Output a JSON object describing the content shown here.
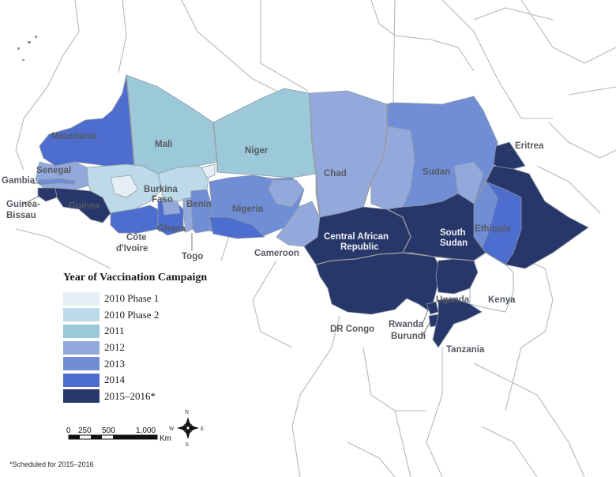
{
  "legend": {
    "title": "Year of Vaccination Campaign",
    "items": [
      {
        "label": "2010 Phase 1",
        "color": "#e3eef5"
      },
      {
        "label": "2010 Phase 2",
        "color": "#bcdae7"
      },
      {
        "label": "2011",
        "color": "#9bc9d9"
      },
      {
        "label": "2012",
        "color": "#93a9dc"
      },
      {
        "label": "2013",
        "color": "#6f8ed6"
      },
      {
        "label": "2014",
        "color": "#4d6dcf"
      },
      {
        "label": "2015–2016*",
        "color": "#27376a"
      }
    ]
  },
  "countries": [
    {
      "name": "Mauritania",
      "color": "#4d6dcf"
    },
    {
      "name": "Mali",
      "color": "#9bc9d9"
    },
    {
      "name": "Niger",
      "color": "#9bc9d9"
    },
    {
      "name": "Chad",
      "color": "#93a9dc"
    },
    {
      "name": "Sudan",
      "color": "#6f8ed6"
    },
    {
      "name": "Eritrea",
      "color": "#27376a"
    },
    {
      "name": "Senegal",
      "color": "#93a9dc"
    },
    {
      "name": "Gambia",
      "color": "#6f8ed6"
    },
    {
      "name": "Guinea-Bissau",
      "color": "#27376a"
    },
    {
      "name": "Guinea",
      "color": "#27376a"
    },
    {
      "name": "Burkina Faso",
      "color": "#bcdae7"
    },
    {
      "name": "Benin",
      "color": "#6f8ed6"
    },
    {
      "name": "Nigeria",
      "color": "#6f8ed6"
    },
    {
      "name": "Ghana",
      "color": "#4d6dcf"
    },
    {
      "name": "Côte d'Ivoire",
      "color": "#4d6dcf"
    },
    {
      "name": "Togo",
      "color": "#93a9dc"
    },
    {
      "name": "Cameroon",
      "color": "#93a9dc"
    },
    {
      "name": "Central African Republic",
      "color": "#27376a"
    },
    {
      "name": "South Sudan",
      "color": "#27376a"
    },
    {
      "name": "Ethiopia",
      "color": "#4d6dcf"
    },
    {
      "name": "DR Congo",
      "color": "#27376a"
    },
    {
      "name": "Uganda",
      "color": "#27376a"
    },
    {
      "name": "Kenya",
      "color": "#ffffff"
    },
    {
      "name": "Rwanda",
      "color": "#27376a"
    },
    {
      "name": "Burundi",
      "color": "#27376a"
    },
    {
      "name": "Tanzania",
      "color": "#27376a"
    }
  ],
  "labels": {
    "mauritania": "Mauritania",
    "mali": "Mali",
    "niger": "Niger",
    "chad": "Chad",
    "sudan": "Sudan",
    "eritrea": "Eritrea",
    "senegal": "Senegal",
    "gambia": "Gambia",
    "guinea_bissau_1": "Guinea-",
    "guinea_bissau_2": "Bissau",
    "guinea": "Guinea",
    "burkina_1": "Burkina",
    "burkina_2": "Faso",
    "benin": "Benin",
    "nigeria": "Nigeria",
    "ghana": "Ghana",
    "cote_1": "Côte",
    "cote_2": "d'Ivoire",
    "togo": "Togo",
    "cameroon": "Cameroon",
    "car_1": "Central African",
    "car_2": "Republic",
    "ss_1": "South",
    "ss_2": "Sudan",
    "ethiopia": "Ethiopia",
    "drc": "DR Congo",
    "uganda": "Uganda",
    "kenya": "Kenya",
    "rwanda": "Rwanda",
    "burundi": "Burundi",
    "tanzania": "Tanzania"
  },
  "scale": {
    "ticks": [
      "0",
      "250",
      "500",
      "1,000"
    ],
    "unit": "Km"
  },
  "compass": {
    "n": "N",
    "s": "S",
    "e": "E",
    "w": "W"
  },
  "footnote": "*Scheduled for 2015–2016"
}
